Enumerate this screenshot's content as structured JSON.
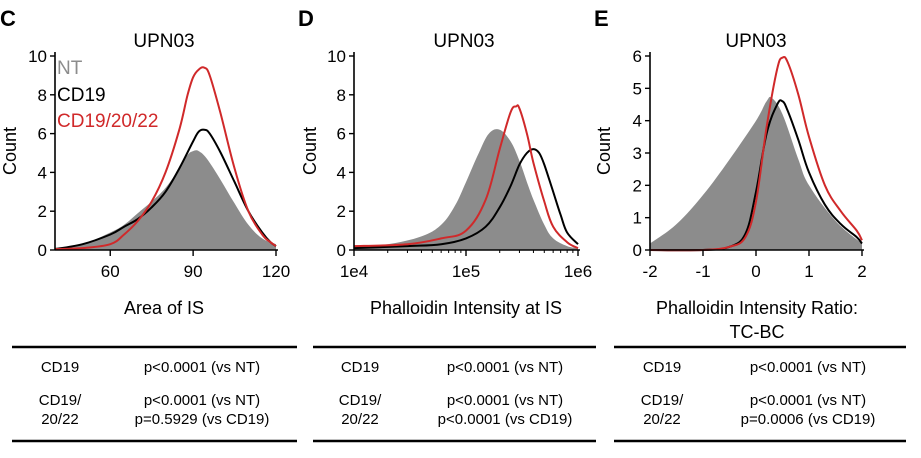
{
  "colors": {
    "nt": "#8c8c8c",
    "cd19": "#000000",
    "cd192022": "#d0292a"
  },
  "legend": {
    "nt": "NT",
    "cd19": "CD19",
    "cd192022": "CD19/20/22"
  },
  "tables": [
    {
      "row1_label": "CD19",
      "row1_value": "p<0.0001 (vs NT)",
      "row2_label_a": "CD19/",
      "row2_label_b": "20/22",
      "row2_value_a": "p<0.0001 (vs NT)",
      "row2_value_b": "p=0.5929 (vs CD19)"
    },
    {
      "row1_label": "CD19",
      "row1_value": "p<0.0001 (vs NT)",
      "row2_label_a": "CD19/",
      "row2_label_b": "20/22",
      "row2_value_a": "p<0.0001 (vs NT)",
      "row2_value_b": "p<0.0001 (vs CD19)"
    },
    {
      "row1_label": "CD19",
      "row1_value": "p<0.0001 (vs NT)",
      "row2_label_a": "CD19/",
      "row2_label_b": "20/22",
      "row2_value_a": "p<0.0001 (vs NT)",
      "row2_value_b": "p=0.0006 (vs CD19)"
    }
  ],
  "chart_data": [
    {
      "panel": "C",
      "type": "area",
      "title": "UPN03",
      "xlabel": "Area of IS",
      "ylabel": "Count",
      "xscale": "linear",
      "xlim": [
        40,
        120
      ],
      "ylim": [
        0,
        10
      ],
      "xticks": [
        60,
        90,
        120
      ],
      "xtick_labels": [
        "60",
        "90",
        "120"
      ],
      "yticks": [
        0,
        2,
        4,
        6,
        8,
        10
      ],
      "ytick_labels": [
        "0",
        "2",
        "4",
        "6",
        "8",
        "10"
      ],
      "series": [
        {
          "name": "NT",
          "style": "fill",
          "x": [
            40,
            50,
            60,
            65,
            70,
            75,
            80,
            85,
            88,
            90,
            92,
            95,
            100,
            105,
            110,
            115,
            120
          ],
          "y": [
            0.05,
            0.3,
            0.9,
            1.3,
            1.9,
            2.5,
            3.2,
            4.2,
            4.9,
            5.1,
            5.1,
            4.7,
            3.6,
            2.4,
            1.3,
            0.6,
            0.3
          ]
        },
        {
          "name": "CD19",
          "style": "line",
          "x": [
            40,
            50,
            60,
            65,
            70,
            75,
            80,
            85,
            90,
            92,
            94,
            96,
            100,
            105,
            110,
            115,
            118,
            120
          ],
          "y": [
            0.05,
            0.3,
            0.8,
            1.2,
            1.6,
            2.2,
            3.0,
            4.2,
            5.6,
            6.1,
            6.2,
            6.0,
            5.0,
            3.5,
            2.0,
            0.9,
            0.4,
            0.2
          ]
        },
        {
          "name": "CD19/20/22",
          "style": "line",
          "x": [
            40,
            50,
            60,
            65,
            70,
            75,
            80,
            85,
            88,
            90,
            92,
            94,
            96,
            100,
            105,
            110,
            115,
            118,
            120
          ],
          "y": [
            0.05,
            0.1,
            0.3,
            0.8,
            1.5,
            2.5,
            4.0,
            6.2,
            8.0,
            8.9,
            9.3,
            9.4,
            9.0,
            7.0,
            4.2,
            2.0,
            0.8,
            0.4,
            0.2
          ]
        }
      ]
    },
    {
      "panel": "D",
      "type": "area",
      "title": "UPN03",
      "xlabel": "Phalloidin Intensity at IS",
      "ylabel": "Count",
      "xscale": "log",
      "xlim": [
        10000,
        1000000
      ],
      "ylim": [
        0,
        10
      ],
      "xticks": [
        10000,
        100000,
        1000000
      ],
      "xtick_labels": [
        "1e4",
        "1e5",
        "1e6"
      ],
      "yticks": [
        0,
        2,
        4,
        6,
        8,
        10
      ],
      "ytick_labels": [
        "0",
        "2",
        "4",
        "6",
        "8",
        "10"
      ],
      "series": [
        {
          "name": "NT",
          "style": "fill",
          "x": [
            10000,
            20000,
            40000,
            60000,
            80000,
            100000,
            130000,
            160000,
            200000,
            250000,
            300000,
            350000,
            400000,
            500000,
            600000,
            800000,
            1000000
          ],
          "y": [
            0.2,
            0.3,
            0.7,
            1.3,
            2.3,
            3.5,
            5.0,
            6.0,
            6.2,
            5.6,
            4.6,
            3.5,
            2.6,
            1.3,
            0.6,
            0.2,
            0.1
          ]
        },
        {
          "name": "CD19",
          "style": "line",
          "x": [
            10000,
            30000,
            60000,
            100000,
            150000,
            200000,
            250000,
            300000,
            350000,
            400000,
            450000,
            500000,
            600000,
            700000,
            800000,
            1000000
          ],
          "y": [
            0.1,
            0.2,
            0.3,
            0.6,
            1.2,
            2.2,
            3.3,
            4.4,
            5.0,
            5.2,
            5.0,
            4.4,
            3.0,
            1.8,
            0.9,
            0.3
          ]
        },
        {
          "name": "CD19/20/22",
          "style": "line",
          "x": [
            10000,
            30000,
            60000,
            100000,
            150000,
            200000,
            250000,
            280000,
            300000,
            350000,
            400000,
            500000,
            600000,
            800000,
            1000000
          ],
          "y": [
            0.2,
            0.3,
            0.6,
            1.0,
            2.6,
            5.2,
            7.1,
            7.4,
            7.3,
            6.0,
            4.5,
            2.5,
            1.2,
            0.4,
            0.1
          ]
        }
      ]
    },
    {
      "panel": "E",
      "type": "area",
      "title": "UPN03",
      "xlabel": "Phalloidin Intensity Ratio:",
      "xlabel2": "TC-BC",
      "ylabel": "Count",
      "xscale": "linear",
      "xlim": [
        -2,
        2
      ],
      "ylim": [
        0,
        6
      ],
      "xticks": [
        -2,
        -1,
        0,
        1,
        2
      ],
      "xtick_labels": [
        "-2",
        "-1",
        "0",
        "1",
        "2"
      ],
      "yticks": [
        0,
        1,
        2,
        3,
        4,
        5,
        6
      ],
      "ytick_labels": [
        "0",
        "1",
        "2",
        "3",
        "4",
        "5",
        "6"
      ],
      "series": [
        {
          "name": "NT",
          "style": "fill",
          "x": [
            -2,
            -1.5,
            -1,
            -0.5,
            0,
            0.2,
            0.3,
            0.5,
            0.8,
            1,
            1.5,
            2
          ],
          "y": [
            0.2,
            0.8,
            1.7,
            2.8,
            4.0,
            4.6,
            4.7,
            4.2,
            2.8,
            2.0,
            0.9,
            0.2
          ]
        },
        {
          "name": "CD19",
          "style": "line",
          "x": [
            -2,
            -1,
            -0.5,
            -0.2,
            0,
            0.2,
            0.4,
            0.5,
            0.6,
            0.8,
            1,
            1.3,
            1.6,
            1.9,
            2
          ],
          "y": [
            0,
            0,
            0.1,
            0.5,
            1.8,
            3.6,
            4.5,
            4.6,
            4.3,
            3.4,
            2.4,
            1.4,
            0.8,
            0.4,
            0.2
          ]
        },
        {
          "name": "CD19/20/22",
          "style": "line",
          "x": [
            -2,
            -1,
            -0.5,
            -0.2,
            0,
            0.2,
            0.4,
            0.5,
            0.6,
            0.8,
            1,
            1.3,
            1.6,
            1.9,
            2
          ],
          "y": [
            0,
            0,
            0.1,
            0.4,
            1.5,
            3.8,
            5.6,
            5.95,
            5.8,
            4.8,
            3.5,
            2.0,
            1.2,
            0.6,
            0.3
          ]
        }
      ]
    }
  ]
}
